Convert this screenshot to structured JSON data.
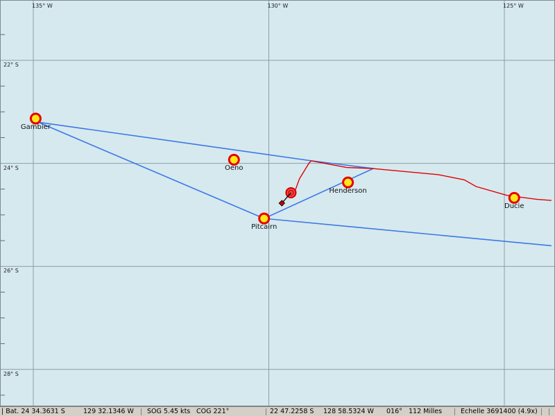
{
  "grid": {
    "lon_labels": [
      {
        "lon": -135,
        "text": "135° W"
      },
      {
        "lon": -130,
        "text": "130° W"
      },
      {
        "lon": -125,
        "text": "125° W"
      }
    ],
    "lat_labels": [
      {
        "lat": -22,
        "text": "22° S"
      },
      {
        "lat": -24,
        "text": "24° S"
      },
      {
        "lat": -26,
        "text": "26° S"
      },
      {
        "lat": -28,
        "text": "28° S"
      }
    ]
  },
  "places": [
    {
      "id": "gambier",
      "name": "Gambier",
      "lat": -23.13,
      "lon": -134.95
    },
    {
      "id": "oeno",
      "name": "Oeno",
      "lat": -23.93,
      "lon": -130.74
    },
    {
      "id": "henderson",
      "name": "Henderson",
      "lat": -24.37,
      "lon": -128.32
    },
    {
      "id": "pitcairn",
      "name": "Pitcairn",
      "lat": -25.07,
      "lon": -130.1
    },
    {
      "id": "ducie",
      "name": "Ducie",
      "lat": -24.67,
      "lon": -124.79
    }
  ],
  "routes": [
    {
      "name": "route",
      "points": [
        [
          -134.9,
          -23.2
        ],
        [
          -129.1,
          -23.95
        ],
        [
          -127.78,
          -24.1
        ]
      ]
    },
    {
      "name": "route",
      "points": [
        [
          -134.9,
          -23.2
        ],
        [
          -130.1,
          -25.07
        ],
        [
          -127.78,
          -24.1
        ]
      ]
    },
    {
      "name": "route",
      "points": [
        [
          -130.1,
          -25.07
        ],
        [
          -124.0,
          -25.6
        ]
      ]
    }
  ],
  "track": {
    "points": [
      [
        -129.1,
        -23.95
      ],
      [
        -128.35,
        -24.08
      ],
      [
        -127.8,
        -24.1
      ],
      [
        -126.4,
        -24.22
      ],
      [
        -125.85,
        -24.32
      ],
      [
        -125.6,
        -24.45
      ],
      [
        -124.95,
        -24.62
      ],
      [
        -124.3,
        -24.7
      ],
      [
        -124.0,
        -24.72
      ]
    ],
    "tail": [
      [
        -129.1,
        -23.95
      ],
      [
        -129.15,
        -24.0
      ],
      [
        -129.35,
        -24.3
      ],
      [
        -129.45,
        -24.55
      ]
    ]
  },
  "boat": {
    "lat": -24.57,
    "lon": -129.53,
    "cog": 221
  },
  "status": {
    "bat": "| Bat. 24 34.3631 S",
    "bat_lon": "129 32.1346 W",
    "sog": "SOG 5.45 kts",
    "cog": "COG 221°",
    "cursor_lat": "22 47.2258 S",
    "cursor_lon": "128 58.5324 W",
    "bearing": "016°",
    "distance": "112 Milles",
    "scale": "Echelle 3691400 (4.9x)"
  },
  "colors": {
    "sea": "#d6e9ef",
    "grid": "#8a9ea6",
    "route": "#3b78e7",
    "track": "#e00000",
    "marker_ring": "#e60000",
    "marker_fill": "#ffe81a"
  }
}
